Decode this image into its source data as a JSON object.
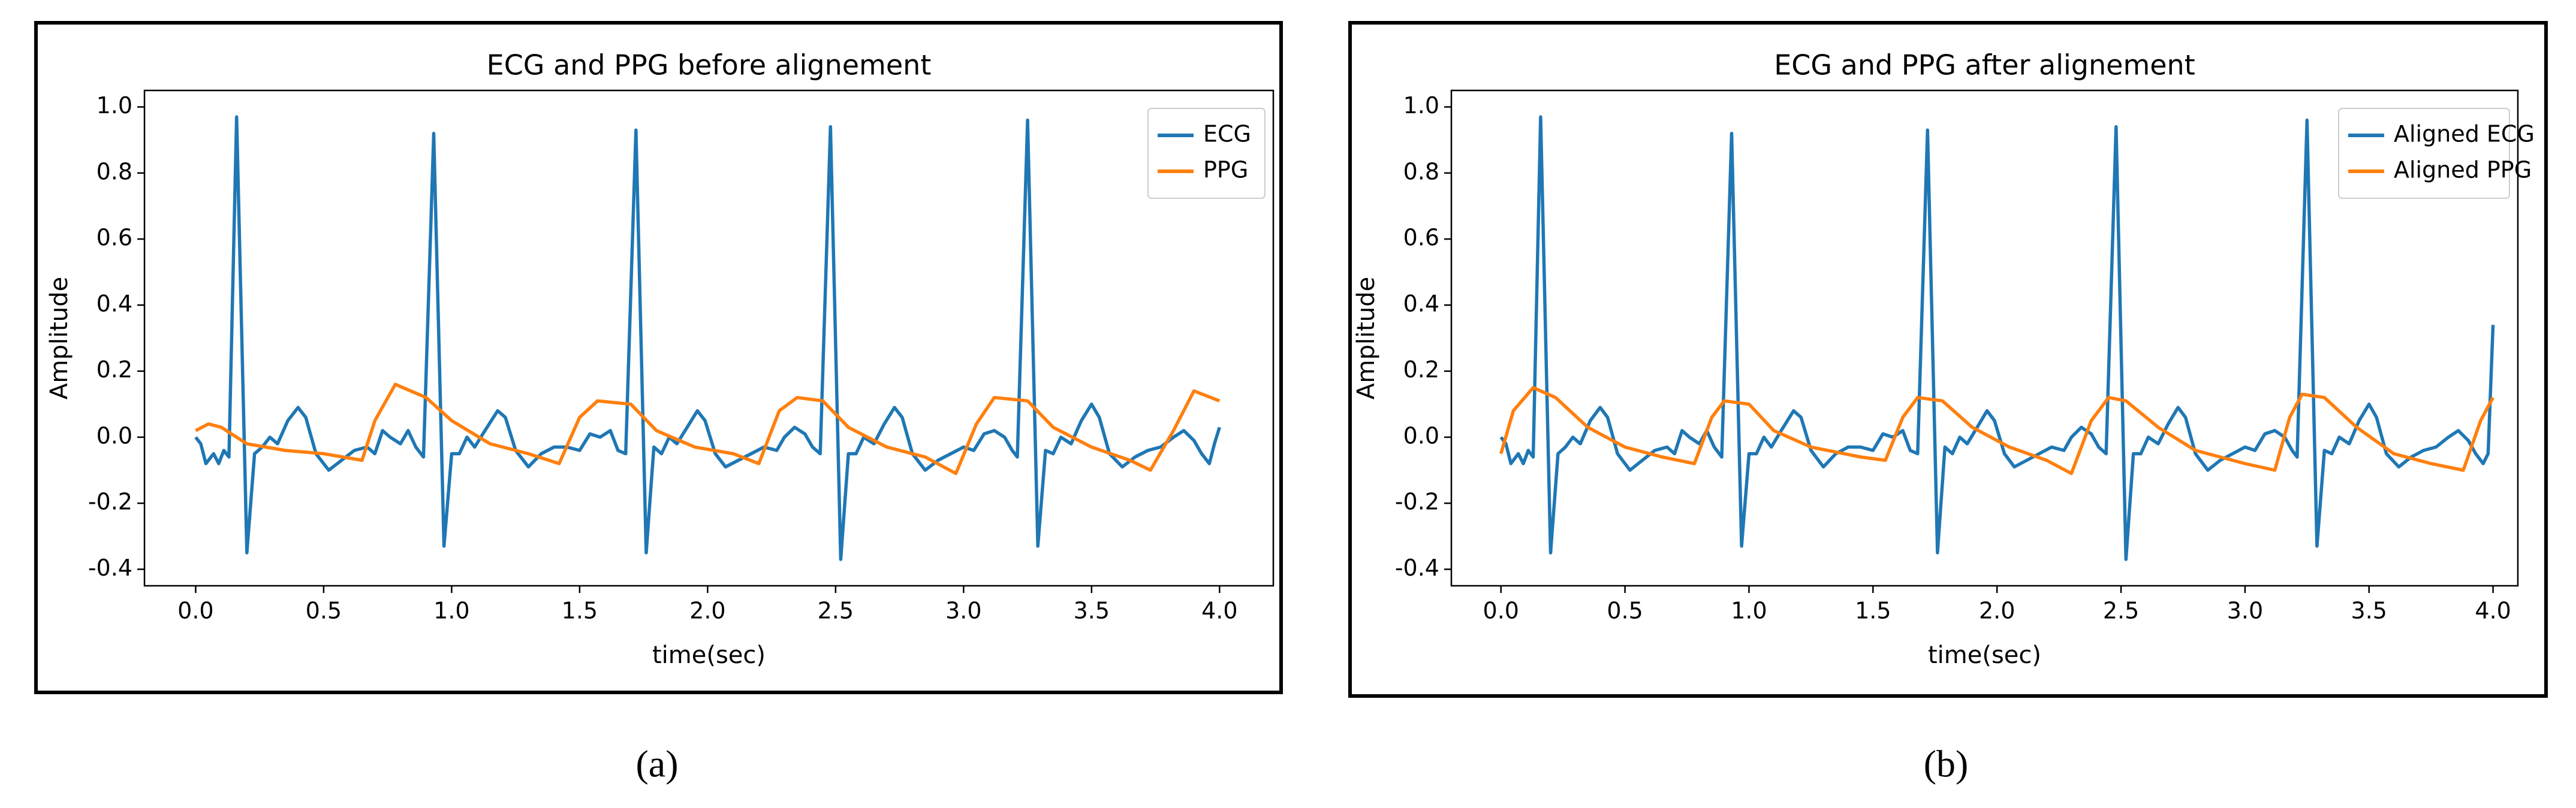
{
  "chart_data": [
    {
      "type": "line",
      "title": "ECG and PPG before alignement",
      "x_label": "time(sec)",
      "y_label": "Amplitude",
      "caption": "(a)",
      "xlim": [
        -0.2,
        4.21
      ],
      "ylim": [
        -0.45,
        1.05
      ],
      "xticks": [
        {
          "value": 0,
          "label": "0.0"
        },
        0.5,
        {
          "value": 1,
          "label": "1.0"
        },
        1.5,
        {
          "value": 2,
          "label": "2.0"
        },
        2.5,
        {
          "value": 3,
          "label": "3.0"
        },
        3.5,
        {
          "value": 4,
          "label": "4.0"
        }
      ],
      "yticks": [
        -0.4,
        -0.2,
        {
          "value": 0,
          "label": "0.0"
        },
        0.2,
        0.4,
        0.6,
        0.8,
        {
          "value": 1,
          "label": "1.0"
        }
      ],
      "legend": "upper right",
      "series": [
        {
          "name": "ECG",
          "color": "#1f77b4",
          "x": [
            0,
            0.02,
            0.04,
            0.07,
            0.09,
            0.11,
            0.13,
            0.16,
            0.2,
            0.23,
            0.26,
            0.29,
            0.32,
            0.36,
            0.4,
            0.43,
            0.47,
            0.52,
            0.57,
            0.62,
            0.67,
            0.7,
            0.73,
            0.76,
            0.8,
            0.83,
            0.86,
            0.89,
            0.93,
            0.97,
            1,
            1.03,
            1.06,
            1.09,
            1.13,
            1.18,
            1.21,
            1.25,
            1.3,
            1.35,
            1.4,
            1.45,
            1.5,
            1.54,
            1.58,
            1.62,
            1.65,
            1.68,
            1.72,
            1.76,
            1.79,
            1.82,
            1.85,
            1.88,
            1.92,
            1.96,
            1.99,
            2.03,
            2.07,
            2.12,
            2.17,
            2.22,
            2.27,
            2.3,
            2.34,
            2.38,
            2.41,
            2.44,
            2.48,
            2.52,
            2.55,
            2.58,
            2.61,
            2.65,
            2.69,
            2.73,
            2.76,
            2.8,
            2.85,
            2.9,
            2.95,
            3,
            3.04,
            3.08,
            3.12,
            3.16,
            3.19,
            3.21,
            3.25,
            3.29,
            3.32,
            3.35,
            3.38,
            3.42,
            3.46,
            3.5,
            3.53,
            3.57,
            3.62,
            3.67,
            3.72,
            3.77,
            3.82,
            3.86,
            3.9,
            3.93,
            3.96,
            3.98,
            4
          ],
          "values": [
            0,
            -0.02,
            -0.08,
            -0.05,
            -0.08,
            -0.04,
            -0.06,
            0.97,
            -0.35,
            -0.05,
            -0.03,
            0,
            -0.02,
            0.05,
            0.09,
            0.06,
            -0.05,
            -0.1,
            -0.07,
            -0.04,
            -0.03,
            -0.05,
            0.02,
            0,
            -0.02,
            0.02,
            -0.03,
            -0.06,
            0.92,
            -0.33,
            -0.05,
            -0.05,
            0,
            -0.03,
            0.02,
            0.08,
            0.06,
            -0.04,
            -0.09,
            -0.05,
            -0.03,
            -0.03,
            -0.04,
            0.01,
            0,
            0.02,
            -0.04,
            -0.05,
            0.93,
            -0.35,
            -0.03,
            -0.05,
            0,
            -0.02,
            0.03,
            0.08,
            0.05,
            -0.05,
            -0.09,
            -0.07,
            -0.05,
            -0.03,
            -0.04,
            0,
            0.03,
            0.01,
            -0.03,
            -0.05,
            0.94,
            -0.37,
            -0.05,
            -0.05,
            0,
            -0.02,
            0.04,
            0.09,
            0.06,
            -0.05,
            -0.1,
            -0.07,
            -0.05,
            -0.03,
            -0.04,
            0.01,
            0.02,
            0,
            -0.04,
            -0.06,
            0.96,
            -0.33,
            -0.04,
            -0.05,
            0,
            -0.02,
            0.05,
            0.1,
            0.06,
            -0.05,
            -0.09,
            -0.06,
            -0.04,
            -0.03,
            0,
            0.02,
            -0.01,
            -0.05,
            -0.08,
            -0.02,
            0.03
          ]
        },
        {
          "name": "PPG",
          "color": "#ff7f0e",
          "x": [
            0,
            0.05,
            0.1,
            0.2,
            0.35,
            0.5,
            0.65,
            0.7,
            0.78,
            0.9,
            1,
            1.15,
            1.3,
            1.42,
            1.5,
            1.57,
            1.7,
            1.8,
            1.95,
            2.1,
            2.2,
            2.28,
            2.35,
            2.45,
            2.55,
            2.7,
            2.85,
            2.97,
            3.05,
            3.12,
            3.25,
            3.35,
            3.5,
            3.65,
            3.73,
            3.82,
            3.9,
            4
          ],
          "values": [
            0.02,
            0.04,
            0.03,
            -0.02,
            -0.04,
            -0.05,
            -0.07,
            0.05,
            0.16,
            0.12,
            0.05,
            -0.02,
            -0.05,
            -0.08,
            0.06,
            0.11,
            0.1,
            0.02,
            -0.03,
            -0.05,
            -0.08,
            0.08,
            0.12,
            0.11,
            0.03,
            -0.03,
            -0.06,
            -0.11,
            0.04,
            0.12,
            0.11,
            0.03,
            -0.03,
            -0.07,
            -0.1,
            0.02,
            0.14,
            0.11
          ]
        }
      ]
    },
    {
      "type": "line",
      "title": "ECG and PPG after alignement",
      "x_label": "time(sec)",
      "y_label": "Amplitude",
      "caption": "(b)",
      "xlim": [
        -0.2,
        4.1
      ],
      "ylim": [
        -0.45,
        1.05
      ],
      "xticks": [
        {
          "value": 0,
          "label": "0.0"
        },
        0.5,
        {
          "value": 1,
          "label": "1.0"
        },
        1.5,
        {
          "value": 2,
          "label": "2.0"
        },
        2.5,
        {
          "value": 3,
          "label": "3.0"
        },
        3.5,
        {
          "value": 4,
          "label": "4.0"
        }
      ],
      "yticks": [
        -0.4,
        -0.2,
        {
          "value": 0,
          "label": "0.0"
        },
        0.2,
        0.4,
        0.6,
        0.8,
        {
          "value": 1,
          "label": "1.0"
        }
      ],
      "legend": "upper right",
      "series": [
        {
          "name": "Aligned ECG",
          "color": "#1f77b4",
          "x": [
            0,
            0.02,
            0.04,
            0.07,
            0.09,
            0.11,
            0.13,
            0.16,
            0.2,
            0.23,
            0.26,
            0.29,
            0.32,
            0.36,
            0.4,
            0.43,
            0.47,
            0.52,
            0.57,
            0.62,
            0.67,
            0.7,
            0.73,
            0.76,
            0.8,
            0.83,
            0.86,
            0.89,
            0.93,
            0.97,
            1,
            1.03,
            1.06,
            1.09,
            1.13,
            1.18,
            1.21,
            1.25,
            1.3,
            1.35,
            1.4,
            1.45,
            1.5,
            1.54,
            1.58,
            1.62,
            1.65,
            1.68,
            1.72,
            1.76,
            1.79,
            1.82,
            1.85,
            1.88,
            1.92,
            1.96,
            1.99,
            2.03,
            2.07,
            2.12,
            2.17,
            2.22,
            2.27,
            2.3,
            2.34,
            2.38,
            2.41,
            2.44,
            2.48,
            2.52,
            2.55,
            2.58,
            2.61,
            2.65,
            2.69,
            2.73,
            2.76,
            2.8,
            2.85,
            2.9,
            2.95,
            3,
            3.04,
            3.08,
            3.12,
            3.16,
            3.19,
            3.21,
            3.25,
            3.29,
            3.32,
            3.35,
            3.38,
            3.42,
            3.46,
            3.5,
            3.53,
            3.57,
            3.62,
            3.67,
            3.72,
            3.77,
            3.82,
            3.86,
            3.9,
            3.93,
            3.96,
            3.98,
            4
          ],
          "values": [
            0,
            -0.02,
            -0.08,
            -0.05,
            -0.08,
            -0.04,
            -0.06,
            0.97,
            -0.35,
            -0.05,
            -0.03,
            0,
            -0.02,
            0.05,
            0.09,
            0.06,
            -0.05,
            -0.1,
            -0.07,
            -0.04,
            -0.03,
            -0.05,
            0.02,
            0,
            -0.02,
            0.02,
            -0.03,
            -0.06,
            0.92,
            -0.33,
            -0.05,
            -0.05,
            0,
            -0.03,
            0.02,
            0.08,
            0.06,
            -0.04,
            -0.09,
            -0.05,
            -0.03,
            -0.03,
            -0.04,
            0.01,
            0,
            0.02,
            -0.04,
            -0.05,
            0.93,
            -0.35,
            -0.03,
            -0.05,
            0,
            -0.02,
            0.03,
            0.08,
            0.05,
            -0.05,
            -0.09,
            -0.07,
            -0.05,
            -0.03,
            -0.04,
            0,
            0.03,
            0.01,
            -0.03,
            -0.05,
            0.94,
            -0.37,
            -0.05,
            -0.05,
            0,
            -0.02,
            0.04,
            0.09,
            0.06,
            -0.05,
            -0.1,
            -0.07,
            -0.05,
            -0.03,
            -0.04,
            0.01,
            0.02,
            0,
            -0.04,
            -0.06,
            0.96,
            -0.33,
            -0.04,
            -0.05,
            0,
            -0.02,
            0.05,
            0.1,
            0.06,
            -0.05,
            -0.09,
            -0.06,
            -0.04,
            -0.03,
            0,
            0.02,
            -0.01,
            -0.05,
            -0.08,
            -0.05,
            0.34
          ]
        },
        {
          "name": "Aligned PPG",
          "color": "#ff7f0e",
          "x": [
            0,
            0.05,
            0.13,
            0.22,
            0.35,
            0.5,
            0.65,
            0.78,
            0.85,
            0.9,
            1,
            1.1,
            1.25,
            1.45,
            1.55,
            1.62,
            1.68,
            1.78,
            1.9,
            2.05,
            2.2,
            2.3,
            2.38,
            2.45,
            2.52,
            2.65,
            2.8,
            3,
            3.12,
            3.18,
            3.23,
            3.32,
            3.45,
            3.6,
            3.75,
            3.88,
            3.95,
            4
          ],
          "values": [
            -0.05,
            0.08,
            0.15,
            0.12,
            0.03,
            -0.03,
            -0.06,
            -0.08,
            0.06,
            0.11,
            0.1,
            0.02,
            -0.03,
            -0.06,
            -0.07,
            0.06,
            0.12,
            0.11,
            0.03,
            -0.03,
            -0.07,
            -0.11,
            0.05,
            0.12,
            0.11,
            0.03,
            -0.04,
            -0.08,
            -0.1,
            0.06,
            0.13,
            0.12,
            0.03,
            -0.05,
            -0.08,
            -0.1,
            0.05,
            0.12
          ]
        }
      ]
    }
  ]
}
